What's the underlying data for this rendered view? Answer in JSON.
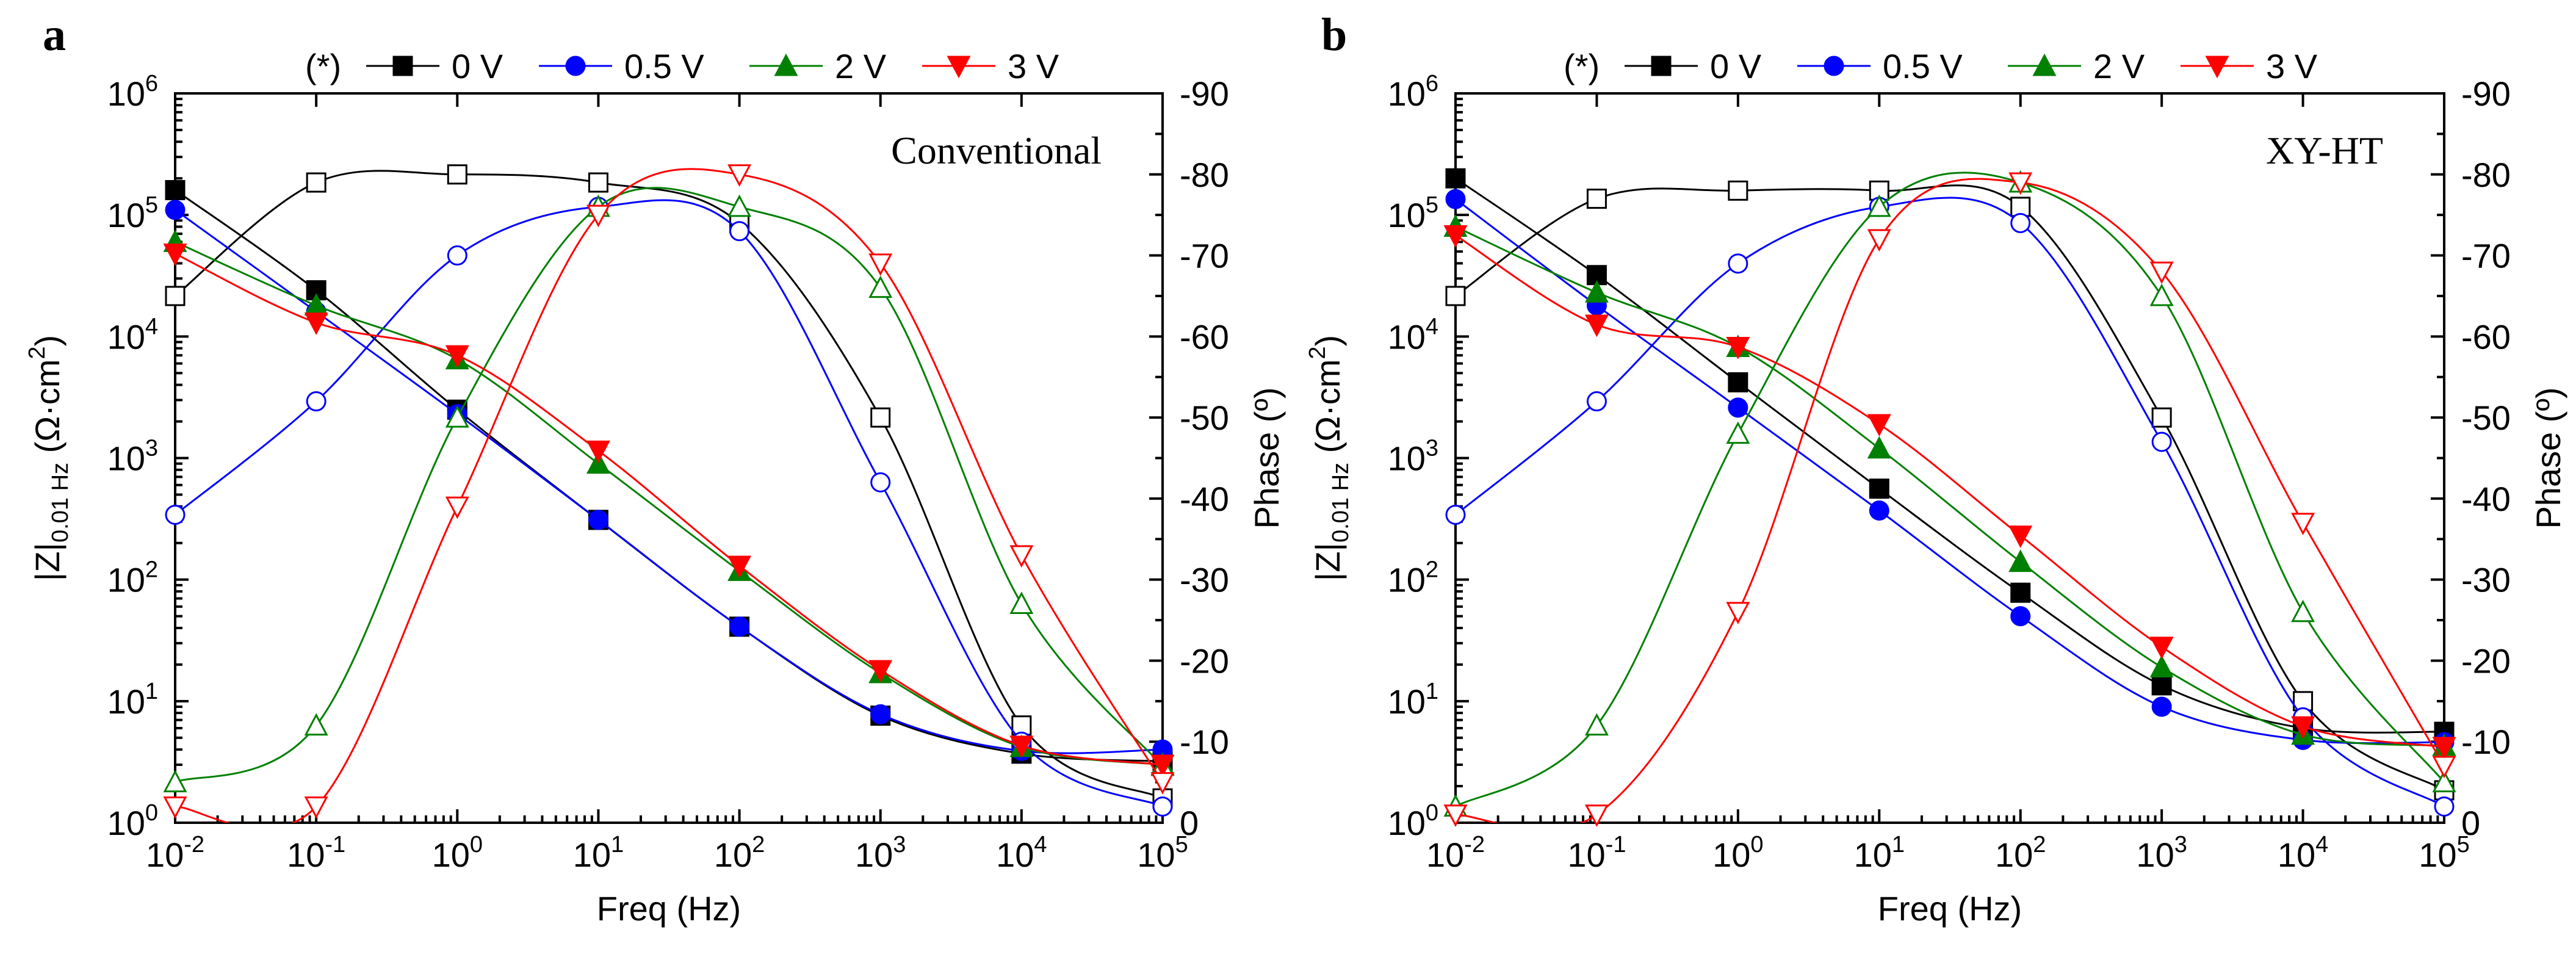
{
  "chart_data": [
    {
      "type": "line",
      "panel_label": "a",
      "annotation": "Conventional",
      "xlabel": "Freq (Hz)",
      "ylabel": "|Z|",
      "ylabel_sub": "0.01 Hz",
      "ylabel_unit": "(Ω·cm",
      "ylabel_unit_sup": "2",
      "ylabel_unit_end": ")",
      "y2label": "Phase (º)",
      "xscale": "log",
      "xlim": [
        0.01,
        100000
      ],
      "yscale": "log",
      "ylim": [
        1,
        1000000
      ],
      "y2lim": [
        0,
        -90
      ],
      "x_tick_exponents": [
        "-2",
        "-1",
        "0",
        "1",
        "2",
        "3",
        "4",
        "5"
      ],
      "y_tick_exponents": [
        "0",
        "1",
        "2",
        "3",
        "4",
        "5",
        "6"
      ],
      "y2_ticks": [
        "0",
        "-10",
        "-20",
        "-30",
        "-40",
        "-50",
        "-60",
        "-70",
        "-80",
        "-90"
      ],
      "legend": {
        "prefix": "(*)",
        "labels": [
          "0 V",
          "0.5 V",
          "2 V",
          "3 V"
        ]
      },
      "x": [
        0.01,
        0.1,
        1,
        10,
        100,
        1000,
        10000,
        100000
      ],
      "series": [
        {
          "name": "0 V",
          "color": "#000000",
          "marker": "square",
          "modulus": [
            160000,
            24000,
            2500,
            310,
            41,
            7.6,
            3.7,
            3.2
          ],
          "phase": [
            -65,
            -79,
            -80,
            -79,
            -74,
            -50,
            -12,
            -3
          ]
        },
        {
          "name": "0.5 V",
          "color": "#0000ff",
          "marker": "circle",
          "modulus": [
            110000,
            16000,
            2300,
            310,
            41,
            7.8,
            3.9,
            4.0
          ],
          "phase": [
            -38,
            -52,
            -70,
            -76,
            -73,
            -42,
            -10,
            -2
          ]
        },
        {
          "name": "2 V",
          "color": "#008000",
          "marker": "triangle-up",
          "modulus": [
            60000,
            18000,
            6500,
            900,
            118,
            17,
            4.2,
            3.0
          ],
          "phase": [
            -5,
            -12,
            -50,
            -76,
            -76,
            -66,
            -27,
            -7
          ]
        },
        {
          "name": "3 V",
          "color": "#ff0000",
          "marker": "triangle-down",
          "modulus": [
            48000,
            13000,
            7000,
            1150,
            130,
            18,
            4.3,
            3.0
          ],
          "phase": [
            -2,
            -2,
            -39,
            -75,
            -80,
            -69,
            -33,
            -5
          ]
        }
      ]
    },
    {
      "type": "line",
      "panel_label": "b",
      "annotation": "XY-HT",
      "xlabel": "Freq (Hz)",
      "ylabel": "|Z|",
      "ylabel_sub": "0.01 Hz",
      "ylabel_unit": "(Ω·cm",
      "ylabel_unit_sup": "2",
      "ylabel_unit_end": ")",
      "y2label": "Phase (º)",
      "xscale": "log",
      "xlim": [
        0.01,
        100000
      ],
      "yscale": "log",
      "ylim": [
        1,
        1000000
      ],
      "y2lim": [
        0,
        -90
      ],
      "x_tick_exponents": [
        "-2",
        "-1",
        "0",
        "1",
        "2",
        "3",
        "4",
        "5"
      ],
      "y_tick_exponents": [
        "0",
        "1",
        "2",
        "3",
        "4",
        "5",
        "6"
      ],
      "y2_ticks": [
        "0",
        "-10",
        "-20",
        "-30",
        "-40",
        "-50",
        "-60",
        "-70",
        "-80",
        "-90"
      ],
      "legend": {
        "prefix": "(*)",
        "labels": [
          "0 V",
          "0.5 V",
          "2 V",
          "3 V"
        ]
      },
      "x": [
        0.01,
        0.1,
        1,
        10,
        100,
        1000,
        10000,
        100000
      ],
      "series": [
        {
          "name": "0 V",
          "color": "#000000",
          "marker": "square",
          "modulus": [
            200000,
            32000,
            4200,
            560,
            78,
            13.5,
            6.0,
            5.6
          ],
          "phase": [
            -65,
            -77,
            -78,
            -78,
            -76,
            -50,
            -15,
            -4
          ]
        },
        {
          "name": "0.5 V",
          "color": "#0000ff",
          "marker": "circle",
          "modulus": [
            135000,
            18000,
            2600,
            370,
            50,
            9.0,
            4.8,
            4.6
          ],
          "phase": [
            -38,
            -52,
            -69,
            -76,
            -74,
            -47,
            -13,
            -2
          ]
        },
        {
          "name": "2 V",
          "color": "#008000",
          "marker": "triangle-up",
          "modulus": [
            80000,
            23000,
            8200,
            1200,
            140,
            19,
            5.3,
            4.3
          ],
          "phase": [
            -2,
            -12,
            -48,
            -76,
            -79,
            -65,
            -26,
            -5
          ]
        },
        {
          "name": "3 V",
          "color": "#ff0000",
          "marker": "triangle-down",
          "modulus": [
            68000,
            12500,
            8200,
            1900,
            230,
            28,
            6.2,
            4.2
          ],
          "phase": [
            -1,
            -1,
            -26,
            -72,
            -79,
            -68,
            -37,
            -7
          ]
        }
      ]
    }
  ]
}
